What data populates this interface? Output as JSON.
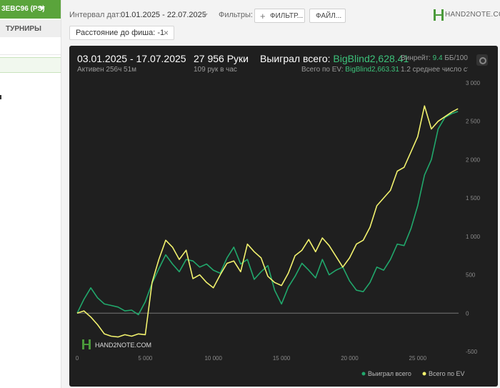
{
  "sidebar": {
    "account": "3EBC96 (PS)",
    "tab": "ТУРНИРЫ"
  },
  "toolbar": {
    "date_label": "Интервал дат:",
    "date_range": "01.01.2025 - 22.07.2025",
    "filters_label": "Фильтры:",
    "filters_button": "ФИЛЬТР...",
    "file_button": "ФАЙЛ...",
    "logo": "HAND2NOTE.COM"
  },
  "active_filter": {
    "text": "Расстояние до фиша: -1",
    "close": "×"
  },
  "summary": {
    "period": "03.01.2025 - 17.07.2025",
    "active": "Активен 256ч 51м",
    "hands": "27 956 Руки",
    "hands_per_hour": "109 рук в час",
    "won_label": "Выиграл всего:",
    "won_value": "BigBlind2,628.41",
    "ev_label": "Всего по EV:",
    "ev_value": "BigBlind2,663.31",
    "winrate_label": "Винрейт:",
    "winrate_value": "9.4",
    "winrate_unit": "ББ/100",
    "avg_text": "1.2 среднее число ст"
  },
  "colors": {
    "won": "#21a86c",
    "ev": "#f2f26e",
    "panel_bg": "#1f1f1f",
    "brand_green": "#5aa43b"
  },
  "chart_data": {
    "type": "line",
    "x_ticks": [
      "0",
      "5 000",
      "10 000",
      "15 000",
      "20 000",
      "25 000"
    ],
    "y_ticks": [
      "-500",
      "0",
      "500",
      "1 000",
      "1 500",
      "2 000",
      "2 500",
      "3 000"
    ],
    "xlim": [
      0,
      28000
    ],
    "ylim": [
      -500,
      3000
    ],
    "grid": false,
    "legend_position": "bottom-right",
    "watermark": "HAND2NOTE.COM",
    "series": [
      {
        "name": "Выиграл всего",
        "color": "#21a86c",
        "x": [
          0,
          500,
          1000,
          1500,
          2000,
          2500,
          3000,
          3500,
          4000,
          4500,
          5000,
          5500,
          6000,
          6500,
          7000,
          7500,
          8000,
          8500,
          9000,
          9500,
          10000,
          10500,
          11000,
          11500,
          12000,
          12500,
          13000,
          13500,
          14000,
          14500,
          15000,
          15500,
          16000,
          16500,
          17000,
          17500,
          18000,
          18500,
          19000,
          19500,
          20000,
          20500,
          21000,
          21500,
          22000,
          22500,
          23000,
          23500,
          24000,
          24500,
          25000,
          25500,
          26000,
          26500,
          27000,
          27500,
          27956
        ],
        "y": [
          0,
          180,
          330,
          200,
          120,
          100,
          80,
          30,
          40,
          -20,
          150,
          390,
          580,
          760,
          640,
          540,
          700,
          680,
          600,
          640,
          560,
          520,
          720,
          860,
          640,
          700,
          440,
          540,
          620,
          300,
          120,
          340,
          480,
          650,
          560,
          460,
          700,
          500,
          560,
          600,
          420,
          300,
          280,
          400,
          600,
          560,
          700,
          900,
          880,
          1100,
          1400,
          1800,
          2000,
          2400,
          2550,
          2600,
          2628
        ]
      },
      {
        "name": "Всего по EV",
        "color": "#f2f26e",
        "x": [
          0,
          500,
          1000,
          1500,
          2000,
          2500,
          3000,
          3500,
          4000,
          4500,
          5000,
          5500,
          6000,
          6500,
          7000,
          7500,
          8000,
          8500,
          9000,
          9500,
          10000,
          10500,
          11000,
          11500,
          12000,
          12500,
          13000,
          13500,
          14000,
          14500,
          15000,
          15500,
          16000,
          16500,
          17000,
          17500,
          18000,
          18500,
          19000,
          19500,
          20000,
          20500,
          21000,
          21500,
          22000,
          22500,
          23000,
          23500,
          24000,
          24500,
          25000,
          25500,
          26000,
          26500,
          27000,
          27500,
          27956
        ],
        "y": [
          0,
          30,
          -50,
          -150,
          -270,
          -300,
          -310,
          -280,
          -300,
          -270,
          -280,
          400,
          700,
          950,
          860,
          700,
          820,
          450,
          500,
          400,
          330,
          500,
          650,
          680,
          540,
          900,
          800,
          720,
          480,
          400,
          360,
          520,
          750,
          820,
          960,
          800,
          980,
          880,
          740,
          600,
          720,
          900,
          950,
          1120,
          1400,
          1500,
          1600,
          1850,
          1900,
          2100,
          2300,
          2700,
          2400,
          2500,
          2560,
          2620,
          2663
        ]
      }
    ]
  }
}
